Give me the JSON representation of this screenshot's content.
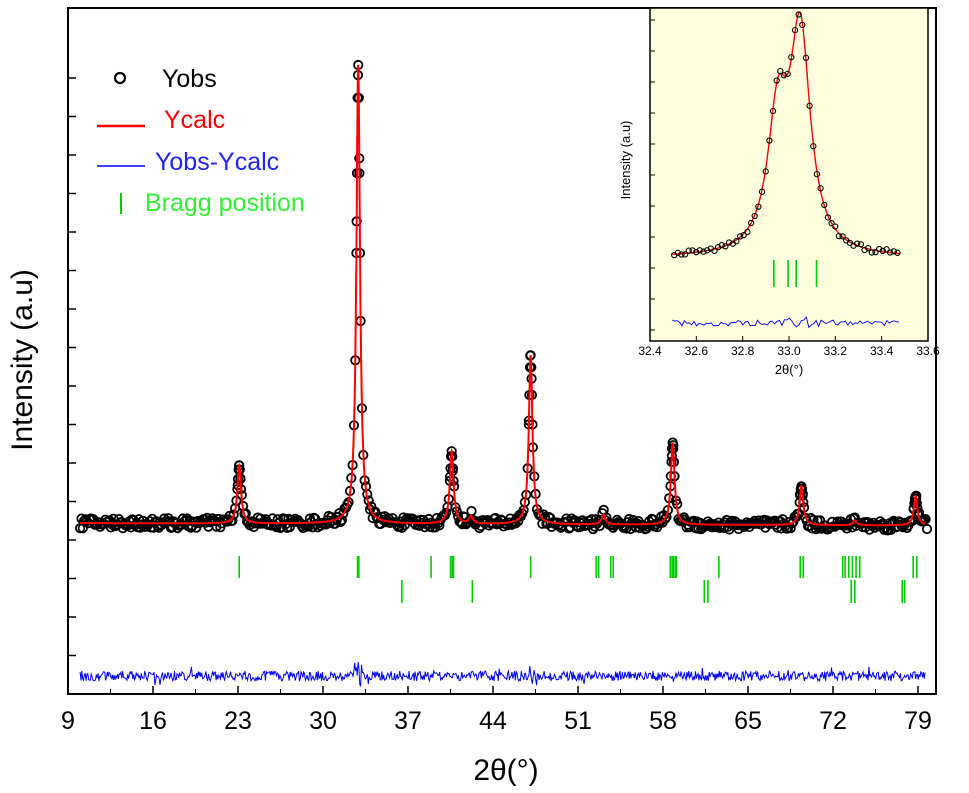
{
  "colors": {
    "observed": "#000000",
    "calculated": "#ff0000",
    "difference": "#0000ff",
    "bragg": "#00cc00",
    "inset_background": "#ffffe0"
  },
  "chart_data": [
    {
      "type": "line",
      "xlabel": "2θ(°)",
      "ylabel": "Intensity (a.u)",
      "xlim": [
        9,
        80
      ],
      "x_ticks": [
        "9",
        "16",
        "23",
        "30",
        "37",
        "44",
        "51",
        "58",
        "65",
        "72",
        "79"
      ],
      "y_ticks_labeled": false,
      "grid": false,
      "legend_position": "top-left",
      "legend": [
        {
          "key": "yobs",
          "label": "Yobs",
          "marker": "open-circle"
        },
        {
          "key": "ycalc",
          "label": "Ycalc",
          "marker": "line"
        },
        {
          "key": "diff",
          "label": "Yobs-Ycalc",
          "marker": "line"
        },
        {
          "key": "bragg",
          "label": "Bragg position",
          "marker": "tick"
        }
      ],
      "background_level": 0.035,
      "background_end_level": 0.03,
      "peaks": [
        {
          "position": 23.1,
          "height": 0.12
        },
        {
          "position": 32.9,
          "height": 0.95
        },
        {
          "position": 40.6,
          "height": 0.15
        },
        {
          "position": 42.2,
          "height": 0.015
        },
        {
          "position": 47.1,
          "height": 0.35
        },
        {
          "position": 53.1,
          "height": 0.02
        },
        {
          "position": 58.8,
          "height": 0.17
        },
        {
          "position": 69.4,
          "height": 0.08
        },
        {
          "position": 73.8,
          "height": 0.01
        },
        {
          "position": 78.8,
          "height": 0.06
        }
      ],
      "bragg_positions_phase1": [
        23.1,
        32.85,
        32.95,
        38.9,
        40.5,
        40.65,
        40.75,
        47.1,
        52.5,
        52.7,
        53.7,
        53.9,
        58.6,
        58.75,
        58.85,
        59.0,
        59.1,
        62.6,
        69.3,
        69.55,
        72.8,
        73.0,
        73.3,
        73.6,
        73.9,
        74.2,
        78.6,
        78.9
      ],
      "bragg_positions_phase2": [
        36.5,
        42.3,
        61.4,
        61.7,
        73.5,
        73.8,
        77.7,
        77.9
      ]
    },
    {
      "type": "line",
      "role": "inset",
      "xlabel": "2θ(°)",
      "ylabel": "Intensity (a.u)",
      "xlim": [
        32.4,
        33.6
      ],
      "x_ticks": [
        "32.4",
        "32.6",
        "32.8",
        "33.0",
        "33.2",
        "33.4",
        "33.6"
      ],
      "y_ticks_labeled": false,
      "grid": false,
      "background_level": 0.05,
      "peaks": [
        {
          "position": 32.97,
          "height": 0.45
        },
        {
          "position": 33.08,
          "height": 0.74
        }
      ],
      "bragg_positions": [
        32.95,
        33.02,
        33.06,
        33.16
      ]
    }
  ]
}
